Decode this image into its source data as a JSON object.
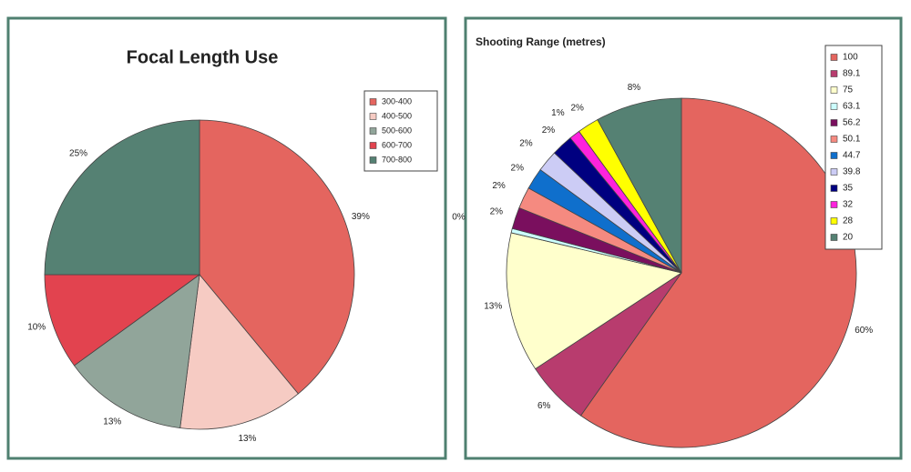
{
  "chart_data": [
    {
      "type": "pie",
      "title": "Focal Length Use",
      "categories": [
        "300-400",
        "400-500",
        "500-600",
        "600-700",
        "700-800"
      ],
      "values": [
        39,
        13,
        13,
        10,
        25
      ],
      "value_labels": [
        "39%",
        "13%",
        "13%",
        "10%",
        "25%"
      ],
      "colors": [
        "#e4655f",
        "#f6cbc3",
        "#91a59a",
        "#e2434f",
        "#558173"
      ]
    },
    {
      "type": "pie",
      "title": "Shooting Range (metres)",
      "categories": [
        "100",
        "89.1",
        "75",
        "63.1",
        "56.2",
        "50.1",
        "44.7",
        "39.8",
        "35",
        "32",
        "28",
        "20"
      ],
      "values": [
        60,
        6,
        13,
        0.4,
        2,
        2,
        2,
        2,
        2,
        1,
        2,
        8
      ],
      "value_labels": [
        "60%",
        "6%",
        "13%",
        "0%",
        "2%",
        "2%",
        "2%",
        "2%",
        "2%",
        "1%",
        "2%",
        "8%"
      ],
      "colors": [
        "#e4655f",
        "#b83c6e",
        "#ffffcc",
        "#ccffff",
        "#7a0f5e",
        "#f58a80",
        "#0f6fcc",
        "#ccccf5",
        "#000080",
        "#ff22dd",
        "#ffff00",
        "#558173"
      ]
    }
  ]
}
